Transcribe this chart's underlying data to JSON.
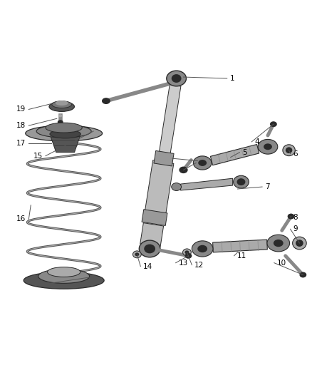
{
  "bg_color": "#ffffff",
  "dark_color": "#2a2a2a",
  "mid_color": "#888888",
  "light_color": "#bbbbbb",
  "line_color": "#555555",
  "label_color": "#000000",
  "fig_width": 4.38,
  "fig_height": 5.33,
  "dpi": 100
}
